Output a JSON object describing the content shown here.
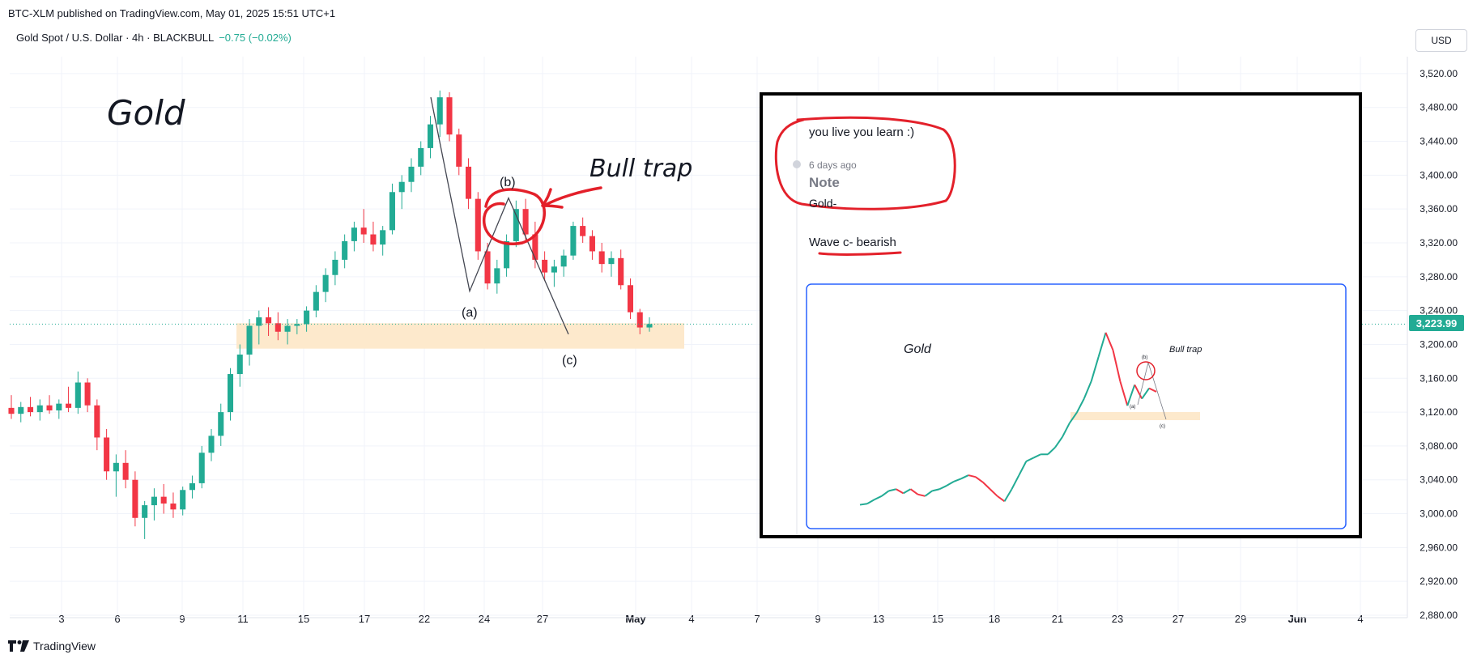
{
  "header": {
    "published": "BTC-XLM published on TradingView.com, May 01, 2025 15:51 UTC+1",
    "symbol": "Gold Spot / U.S. Dollar · 4h · BLACKBULL",
    "change": "−0.75 (−0.02%)",
    "currency_button": "USD"
  },
  "footer": {
    "brand": "TradingView",
    "logo_icon": "tradingview-logo-icon"
  },
  "colors": {
    "up": "#22ab94",
    "down": "#f23645",
    "zone": "#fde9cc",
    "ink": "#e3202a",
    "accent_blue": "#2962ff"
  },
  "chart_data": {
    "type": "candlestick",
    "timeframe": "4h",
    "ylim": [
      2880,
      3540
    ],
    "y_ticks": [
      "3,520.00",
      "3,480.00",
      "3,440.00",
      "3,400.00",
      "3,360.00",
      "3,320.00",
      "3,280.00",
      "3,240.00",
      "3,200.00",
      "3,160.00",
      "3,120.00",
      "3,080.00",
      "3,040.00",
      "3,000.00",
      "2,960.00",
      "2,920.00",
      "2,880.00"
    ],
    "y_tick_values": [
      3520,
      3480,
      3440,
      3400,
      3360,
      3320,
      3280,
      3240,
      3200,
      3160,
      3120,
      3080,
      3040,
      3000,
      2960,
      2920,
      2880
    ],
    "x_ticks": [
      "3",
      "6",
      "9",
      "11",
      "15",
      "17",
      "22",
      "24",
      "27",
      "May",
      "4",
      "7",
      "9",
      "13",
      "15",
      "18",
      "21",
      "23",
      "27",
      "29",
      "Jun",
      "4"
    ],
    "x_tick_pos": [
      0,
      3,
      6,
      8,
      12,
      14,
      18,
      20,
      23,
      27,
      30,
      33,
      36,
      39,
      42,
      45,
      48,
      51,
      54,
      57,
      60,
      63
    ],
    "last_price": "3,223.99",
    "last_price_value": 3223.99,
    "candle_days": [
      -3,
      -2,
      -1,
      0,
      1,
      2,
      3,
      4,
      5,
      6,
      7,
      8,
      9,
      10,
      11,
      12,
      13,
      14,
      15,
      16,
      17,
      18,
      19,
      20,
      21,
      22,
      23,
      24,
      25,
      26,
      27
    ],
    "closes": [
      3125,
      3128,
      3130,
      3132,
      3127,
      3129,
      3124,
      3118,
      3135,
      3125,
      3090,
      3065,
      3040,
      3030,
      3020,
      3010,
      2995,
      2985,
      3000,
      3015,
      3040,
      3070,
      3075,
      3095,
      3110,
      3130,
      3160,
      3175,
      3200,
      3215,
      3222
    ],
    "candles": [
      [
        3125,
        3140,
        3112,
        3118
      ],
      [
        3118,
        3132,
        3108,
        3126
      ],
      [
        3126,
        3138,
        3115,
        3120
      ],
      [
        3120,
        3135,
        3110,
        3128
      ],
      [
        3128,
        3140,
        3118,
        3122
      ],
      [
        3122,
        3135,
        3112,
        3130
      ],
      [
        3130,
        3150,
        3120,
        3125
      ],
      [
        3125,
        3168,
        3118,
        3155
      ],
      [
        3155,
        3160,
        3120,
        3128
      ],
      [
        3128,
        3135,
        3075,
        3090
      ],
      [
        3090,
        3100,
        3040,
        3050
      ],
      [
        3050,
        3070,
        3020,
        3060
      ],
      [
        3060,
        3075,
        3030,
        3040
      ],
      [
        3040,
        3050,
        2985,
        2995
      ],
      [
        2995,
        3015,
        2970,
        3010
      ],
      [
        3010,
        3030,
        2992,
        3020
      ],
      [
        3020,
        3035,
        3000,
        3012
      ],
      [
        3012,
        3025,
        2995,
        3005
      ],
      [
        3005,
        3032,
        2998,
        3028
      ],
      [
        3028,
        3045,
        3018,
        3036
      ],
      [
        3036,
        3080,
        3030,
        3072
      ],
      [
        3072,
        3100,
        3062,
        3092
      ],
      [
        3092,
        3130,
        3080,
        3120
      ],
      [
        3120,
        3172,
        3110,
        3165
      ],
      [
        3165,
        3200,
        3150,
        3188
      ],
      [
        3188,
        3230,
        3175,
        3222
      ],
      [
        3222,
        3240,
        3200,
        3232
      ],
      [
        3232,
        3244,
        3210,
        3225
      ],
      [
        3225,
        3238,
        3205,
        3215
      ],
      [
        3215,
        3230,
        3200,
        3222
      ],
      [
        3222,
        3230,
        3212,
        3224
      ],
      [
        3224,
        3245,
        3215,
        3240
      ],
      [
        3240,
        3270,
        3232,
        3262
      ],
      [
        3262,
        3290,
        3250,
        3282
      ],
      [
        3282,
        3310,
        3270,
        3300
      ],
      [
        3300,
        3330,
        3290,
        3322
      ],
      [
        3322,
        3345,
        3310,
        3338
      ],
      [
        3338,
        3360,
        3320,
        3330
      ],
      [
        3330,
        3345,
        3310,
        3318
      ],
      [
        3318,
        3340,
        3305,
        3335
      ],
      [
        3335,
        3390,
        3330,
        3380
      ],
      [
        3380,
        3400,
        3360,
        3392
      ],
      [
        3392,
        3420,
        3380,
        3410
      ],
      [
        3410,
        3440,
        3400,
        3432
      ],
      [
        3432,
        3470,
        3420,
        3460
      ],
      [
        3460,
        3500,
        3445,
        3492
      ],
      [
        3492,
        3498,
        3440,
        3448
      ],
      [
        3448,
        3455,
        3400,
        3410
      ],
      [
        3410,
        3420,
        3360,
        3372
      ],
      [
        3372,
        3380,
        3300,
        3310
      ],
      [
        3310,
        3320,
        3265,
        3272
      ],
      [
        3272,
        3300,
        3260,
        3290
      ],
      [
        3290,
        3330,
        3280,
        3322
      ],
      [
        3322,
        3370,
        3315,
        3360
      ],
      [
        3360,
        3372,
        3320,
        3330
      ],
      [
        3330,
        3345,
        3290,
        3300
      ],
      [
        3300,
        3310,
        3275,
        3285
      ],
      [
        3285,
        3300,
        3268,
        3292
      ],
      [
        3292,
        3312,
        3280,
        3305
      ],
      [
        3305,
        3345,
        3300,
        3340
      ],
      [
        3340,
        3350,
        3320,
        3328
      ],
      [
        3328,
        3335,
        3300,
        3310
      ],
      [
        3310,
        3320,
        3285,
        3295
      ],
      [
        3295,
        3310,
        3280,
        3302
      ],
      [
        3302,
        3312,
        3265,
        3270
      ],
      [
        3270,
        3278,
        3230,
        3238
      ],
      [
        3238,
        3242,
        3212,
        3220
      ],
      [
        3220,
        3232,
        3215,
        3224
      ]
    ],
    "annotations": {
      "title_text": "Gold",
      "trap_text": "Bull trap",
      "wave_a": "(a)",
      "wave_b": "(b)",
      "wave_c": "(c)"
    }
  },
  "note_card": {
    "comment": "you live you learn :)",
    "time_ago": "6 days ago",
    "heading": "Note",
    "title": "Gold-",
    "wave_text": "Wave c- bearish"
  },
  "thumbnail": {
    "title": "Gold",
    "trap_text": "Bull trap",
    "wave_b": "(b)",
    "wave_a": "(a)",
    "wave_c": "(c)",
    "closes": [
      2995,
      2998,
      3010,
      3020,
      3035,
      3040,
      3028,
      3040,
      3025,
      3020,
      3035,
      3040,
      3050,
      3062,
      3070,
      3080,
      3075,
      3060,
      3040,
      3020,
      3005,
      3040,
      3080,
      3120,
      3130,
      3140,
      3140,
      3160,
      3190,
      3230,
      3260,
      3300,
      3350,
      3420,
      3490,
      3440,
      3350,
      3280,
      3340,
      3300,
      3330,
      3320
    ]
  }
}
